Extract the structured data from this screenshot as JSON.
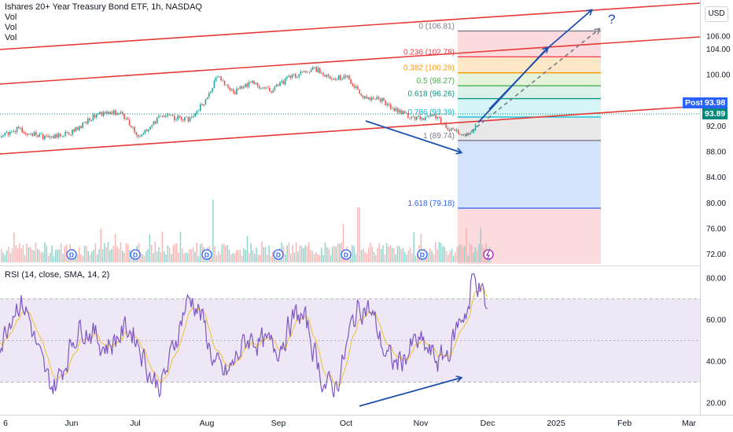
{
  "header": {
    "title": "Ishares 20+ Year Treasury Bond ETF, 1h, NASDAQ",
    "vol_lines": [
      "Vol",
      "Vol",
      "Vol"
    ],
    "currency": "USD"
  },
  "rsi_label": "RSI (14, close, SMA, 14, 2)",
  "price_tags": {
    "post_label": "Post",
    "post_value": "93.98",
    "last_value": "93.89"
  },
  "question_mark": "?",
  "colors": {
    "channel": "#e53935",
    "arrow": "#1e4fae",
    "rsi_line": "#7e57c2",
    "rsi_ma": "#f0c030",
    "rsi_band": "#ede7f6",
    "candle_up": "#26a69a",
    "candle_down": "#ef5350",
    "post_tag": "#2962ff",
    "last_tag": "#00897b"
  },
  "chart_data": [
    {
      "type": "candlestick",
      "price_axis": {
        "ticks": [
          "106.00",
          "104.00",
          "100.00",
          "96.00",
          "92.00",
          "88.00",
          "84.00",
          "80.00",
          "76.00",
          "72.00"
        ]
      },
      "x_axis": {
        "ticks": [
          "6",
          "Jun",
          "Jul",
          "Aug",
          "Sep",
          "Oct",
          "Nov",
          "Dec",
          "2025",
          "Feb",
          "Mar"
        ]
      },
      "fibonacci": [
        {
          "label": "0 (106.81)",
          "price": 106.81,
          "color": "#787b86"
        },
        {
          "label": "0.236 (102.78)",
          "price": 102.78,
          "color": "#f23645"
        },
        {
          "label": "0.382 (100.29)",
          "price": 100.29,
          "color": "#ff9800"
        },
        {
          "label": "0.5 (98.27)",
          "price": 98.27,
          "color": "#4caf50"
        },
        {
          "label": "0.618 (96.26)",
          "price": 96.26,
          "color": "#089981"
        },
        {
          "label": "0.786 (93.39)",
          "price": 93.39,
          "color": "#00bcd4"
        },
        {
          "label": "1 (89.74)",
          "price": 89.74,
          "color": "#787b86"
        },
        {
          "label": "1.618 (79.18)",
          "price": 79.18,
          "color": "#2962ff"
        }
      ],
      "price_path": [
        {
          "x": "May 6",
          "y": 88.8
        },
        {
          "x": "May 15",
          "y": 91.5
        },
        {
          "x": "May 24",
          "y": 90.2
        },
        {
          "x": "Jun 1",
          "y": 91.0
        },
        {
          "x": "Jun 12",
          "y": 93.8
        },
        {
          "x": "Jun 24",
          "y": 94.2
        },
        {
          "x": "Jul 2",
          "y": 90.3
        },
        {
          "x": "Jul 12",
          "y": 93.5
        },
        {
          "x": "Jul 25",
          "y": 93.0
        },
        {
          "x": "Aug 1",
          "y": 96.5
        },
        {
          "x": "Aug 5",
          "y": 99.8
        },
        {
          "x": "Aug 12",
          "y": 97.2
        },
        {
          "x": "Aug 20",
          "y": 98.8
        },
        {
          "x": "Aug 28",
          "y": 97.5
        },
        {
          "x": "Sep 6",
          "y": 99.6
        },
        {
          "x": "Sep 13",
          "y": 100.3
        },
        {
          "x": "Sep 17",
          "y": 100.9
        },
        {
          "x": "Sep 25",
          "y": 99.4
        },
        {
          "x": "Oct 1",
          "y": 99.6
        },
        {
          "x": "Oct 8",
          "y": 96.4
        },
        {
          "x": "Oct 15",
          "y": 96.1
        },
        {
          "x": "Oct 22",
          "y": 94.3
        },
        {
          "x": "Oct 31",
          "y": 93.1
        },
        {
          "x": "Nov 7",
          "y": 93.4
        },
        {
          "x": "Nov 15",
          "y": 91.2
        },
        {
          "x": "Nov 22",
          "y": 90.4
        },
        {
          "x": "Nov 29",
          "y": 93.9
        }
      ]
    },
    {
      "type": "line",
      "title": "RSI (14, close, SMA, 14, 2)",
      "ylim": [
        15,
        85
      ],
      "y_ticks": [
        "80.00",
        "60.00",
        "40.00",
        "20.00"
      ],
      "bands": {
        "upper": 70,
        "middle": 50,
        "lower": 30
      }
    }
  ]
}
